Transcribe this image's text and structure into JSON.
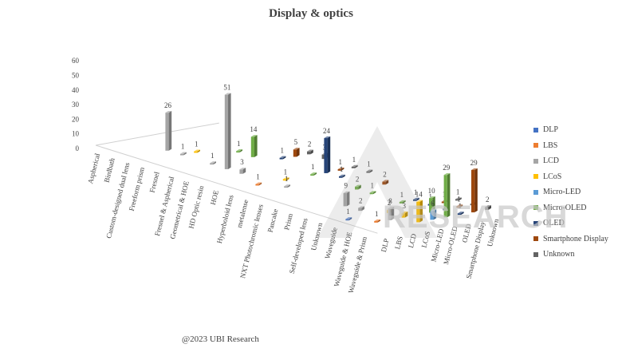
{
  "title": "Display & optics",
  "copyright": "@2023 UBI Research",
  "watermark": "RESEARCH",
  "chart_data": {
    "type": "bar",
    "title": "Display & optics",
    "subtype": "3d-column",
    "zlim": [
      0,
      60
    ],
    "z_ticks": [
      "0",
      "10",
      "20",
      "30",
      "40",
      "50",
      "60"
    ],
    "categories": [
      "Aspherical",
      "Birdbath",
      "Custom-designed dual lens",
      "Freeform prism",
      "Fresnel",
      "Fresnel & Aspherical",
      "Geometrical & HOE",
      "HD Optic resin",
      "HOE",
      "Hyperboloid lens",
      "metalense",
      "NXT Photochromic lenses",
      "Pancake",
      "Prism",
      "Self-developed lens",
      "Unknown",
      "Waveguide",
      "Waveguide & HOE",
      "Waveguide & Prism"
    ],
    "series_axis": [
      "DLP",
      "LBS",
      "LCD",
      "LCoS",
      "Micro-LED",
      "Micro-OLED",
      "OLED",
      "Smartphone Display",
      "Unknown"
    ],
    "legend_position": "right",
    "grid": false,
    "series": [
      {
        "name": "DLP",
        "color": "#4472c4",
        "values": [
          null,
          null,
          null,
          null,
          null,
          null,
          null,
          null,
          null,
          null,
          null,
          null,
          null,
          null,
          null,
          null,
          1,
          null,
          null
        ]
      },
      {
        "name": "LBS",
        "color": "#ed7d31",
        "values": [
          null,
          null,
          null,
          null,
          null,
          null,
          null,
          null,
          null,
          1,
          null,
          null,
          null,
          null,
          null,
          null,
          null,
          1,
          null
        ]
      },
      {
        "name": "LCD",
        "color": "#a5a5a5",
        "values": [
          null,
          null,
          26,
          1,
          null,
          1,
          51,
          3,
          null,
          null,
          1,
          null,
          null,
          null,
          9,
          2,
          null,
          8,
          null
        ]
      },
      {
        "name": "LCoS",
        "color": "#ffc000",
        "values": [
          null,
          null,
          null,
          1,
          null,
          null,
          null,
          null,
          null,
          1,
          null,
          null,
          null,
          null,
          null,
          null,
          2,
          3,
          14
        ]
      },
      {
        "name": "Micro-LED",
        "color": "#5b9bd5",
        "values": [
          null,
          null,
          null,
          null,
          null,
          null,
          null,
          null,
          null,
          null,
          null,
          null,
          null,
          null,
          null,
          null,
          null,
          null,
          6
        ]
      },
      {
        "name": "Micro-OLED",
        "color": "#70ad47",
        "values": [
          null,
          null,
          null,
          null,
          1,
          14,
          null,
          null,
          null,
          1,
          null,
          null,
          2,
          1,
          null,
          1,
          null,
          10,
          29
        ]
      },
      {
        "name": "OLED",
        "color": "#264478",
        "values": [
          null,
          null,
          null,
          null,
          null,
          null,
          1,
          null,
          null,
          24,
          1,
          null,
          null,
          null,
          null,
          1,
          1,
          1,
          1
        ]
      },
      {
        "name": "Smartphone Display",
        "color": "#9e480e",
        "values": [
          null,
          null,
          null,
          null,
          null,
          null,
          5,
          null,
          null,
          1,
          null,
          null,
          2,
          null,
          null,
          null,
          1,
          1,
          29
        ]
      },
      {
        "name": "Unknown",
        "color": "#636363",
        "values": [
          null,
          null,
          null,
          null,
          null,
          null,
          2,
          3,
          null,
          1,
          1,
          null,
          null,
          null,
          null,
          null,
          1,
          1,
          2
        ]
      }
    ]
  }
}
